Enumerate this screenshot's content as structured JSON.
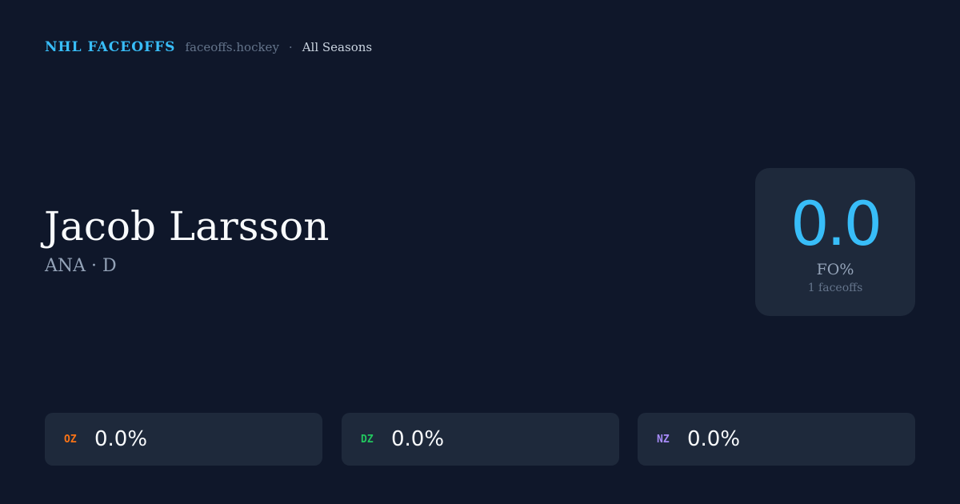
{
  "header": {
    "brand": "NHL FACEOFFS",
    "site": "faceoffs.hockey",
    "separator": "·",
    "season": "All Seasons"
  },
  "player": {
    "name": "Jacob Larsson",
    "subtitle": "ANA · D"
  },
  "summary": {
    "value": "0.0",
    "label": "FO%",
    "count": "1 faceoffs",
    "accent": "#38bdf8"
  },
  "zones": [
    {
      "label": "OZ",
      "value": "0.0%",
      "color": "#f97316"
    },
    {
      "label": "DZ",
      "value": "0.0%",
      "color": "#22c55e"
    },
    {
      "label": "NZ",
      "value": "0.0%",
      "color": "#a78bfa"
    }
  ]
}
